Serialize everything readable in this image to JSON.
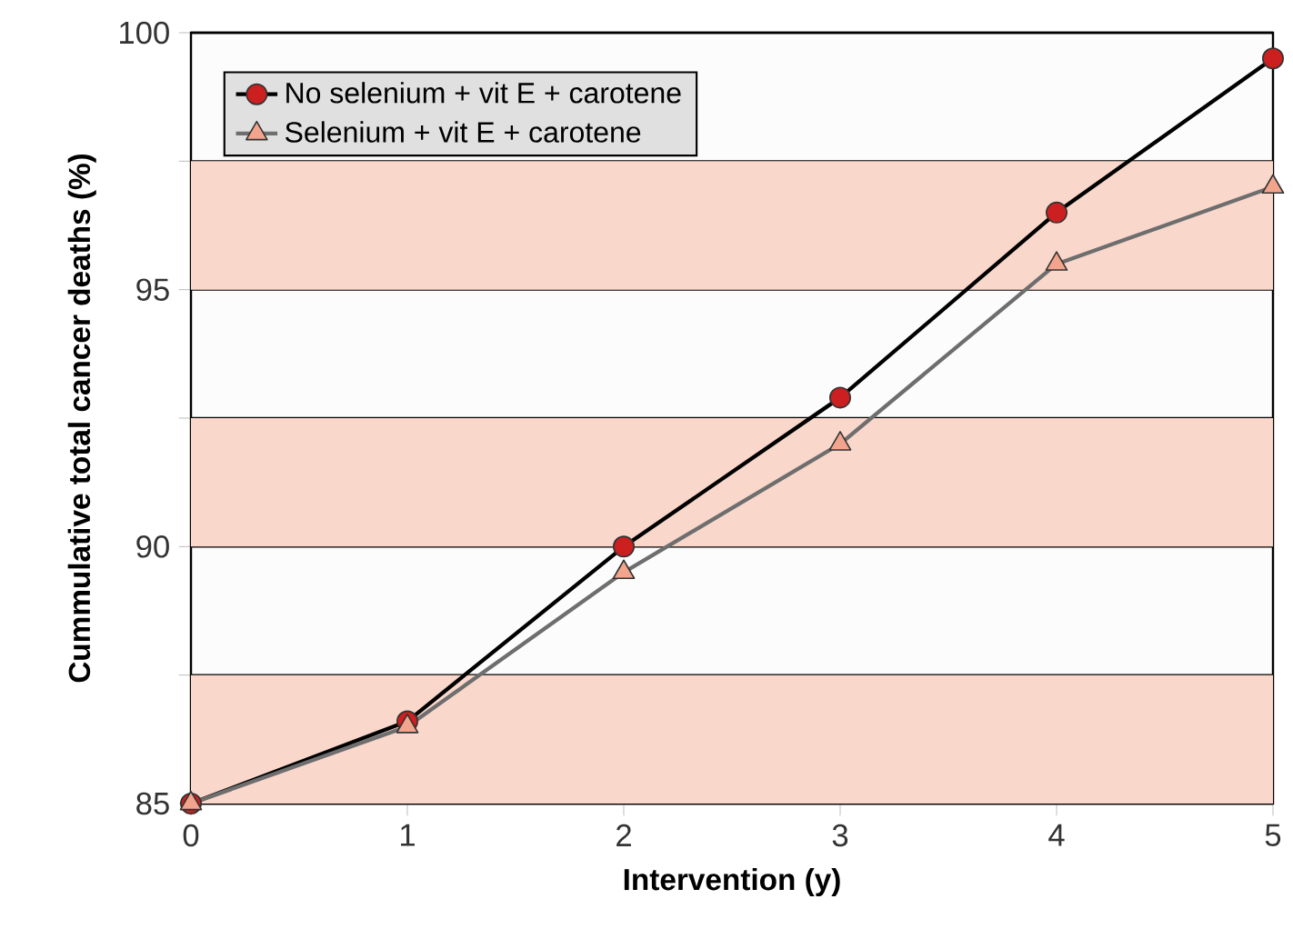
{
  "chart_data": {
    "type": "line",
    "xlabel": "Intervention (y)",
    "ylabel": "Cummulative total cancer deaths (%)",
    "x": [
      0,
      1,
      2,
      3,
      4,
      5
    ],
    "series": [
      {
        "name": "No selenium + vit E + carotene",
        "color": "#000000",
        "marker": "circle",
        "colors": [
          "#cc1f1f",
          "#cc1f1f",
          "#cc1f1f",
          "#cc1f1f",
          "#cc1f1f",
          "#cc1f1f"
        ],
        "values": [
          85,
          86.6,
          90,
          92.9,
          96.5,
          99.5
        ]
      },
      {
        "name": "Selenium + vit E + carotene",
        "color": "#6e6e6e",
        "marker": "triangle",
        "colors": [
          "#f2a58c",
          "#f2a58c",
          "#f2a58c",
          "#f2a58c",
          "#f2a58c",
          "#f2a58c"
        ],
        "values": [
          85,
          86.5,
          89.5,
          92.0,
          95.5,
          97.0
        ]
      }
    ],
    "xlim": [
      0,
      5
    ],
    "ylim": [
      85,
      100
    ],
    "xticks": [
      0,
      1,
      2,
      3,
      4,
      5
    ],
    "yticks": [
      85,
      {
        "value": 87.5,
        "label": null
      },
      90,
      {
        "value": 92.5,
        "label": null
      },
      95,
      {
        "value": 97.5,
        "label": null
      },
      100
    ],
    "bands": [
      {
        "axis": "y",
        "from": 85,
        "to": 87.5,
        "color": "#f9d7cb"
      },
      {
        "axis": "y",
        "from": 90,
        "to": 92.5,
        "color": "#f9d7cb"
      },
      {
        "axis": "y",
        "from": 95,
        "to": 97.5,
        "color": "#f9d7cb"
      }
    ],
    "grid": "y",
    "legend": "top left",
    "line_style": "solid"
  }
}
